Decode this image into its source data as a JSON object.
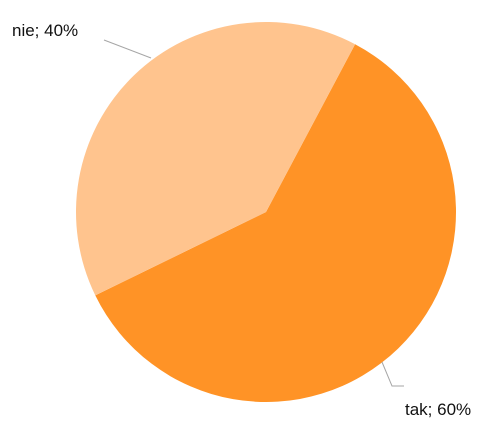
{
  "chart_data": {
    "type": "pie",
    "title": "",
    "slices": [
      {
        "label": "tak",
        "value": 60,
        "display": "tak; 60%",
        "color": "#FF9326"
      },
      {
        "label": "nie",
        "value": 40,
        "display": "nie; 40%",
        "color": "#FFC48E"
      }
    ],
    "leader_line_color": "#a6a6a6",
    "legend": "none"
  }
}
